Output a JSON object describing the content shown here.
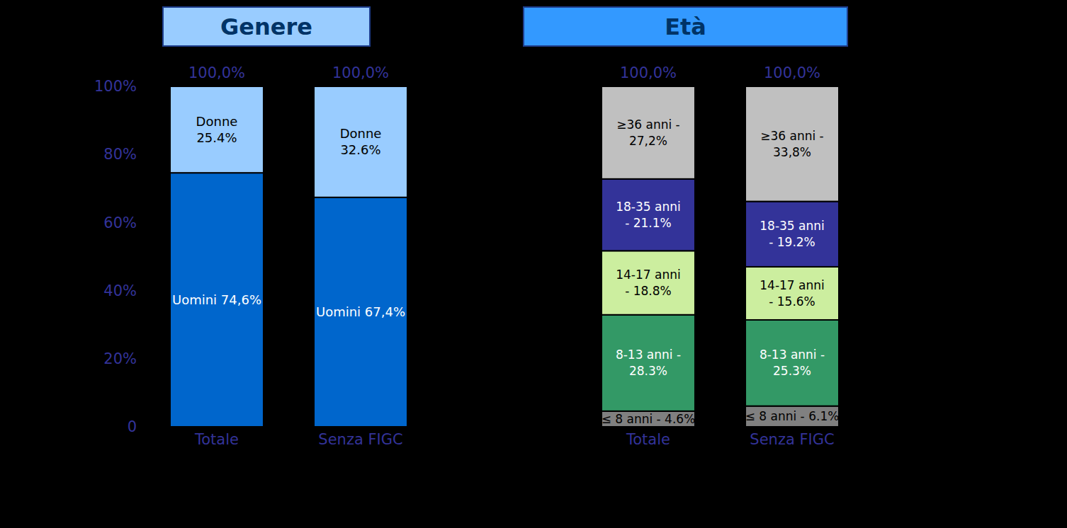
{
  "chart_data": [
    {
      "type": "bar",
      "title": "Genere",
      "stacked": true,
      "data_labels": true,
      "categories": [
        "Totale",
        "Senza FIGC"
      ],
      "series": [
        {
          "name": "Uomini",
          "color": "#0066cc",
          "values": [
            74.6,
            67.4
          ],
          "value_labels": [
            "Uomini 74,6%",
            "Uomini 67,4%"
          ]
        },
        {
          "name": "Donne",
          "color": "#99ccff",
          "values": [
            25.4,
            32.6
          ],
          "value_labels": [
            "Donne\n25.4%",
            "Donne\n32.6%"
          ]
        }
      ],
      "total_labels": [
        "100,0%",
        "100,0%"
      ],
      "ylim": [
        0,
        100
      ],
      "yticks": [
        0,
        {
          "value": 20,
          "label": "20%"
        },
        {
          "value": 40,
          "label": "40%"
        },
        {
          "value": 60,
          "label": "60%"
        },
        {
          "value": 80,
          "label": "80%"
        },
        {
          "value": 100,
          "label": "100%"
        }
      ]
    },
    {
      "type": "bar",
      "title": "Età",
      "stacked": true,
      "data_labels": true,
      "tick_labels": "x",
      "categories": [
        "Totale",
        "Senza FIGC"
      ],
      "series": [
        {
          "name": "≤ 8 anni",
          "color": "#808080",
          "values": [
            4.6,
            6.1
          ],
          "value_labels": [
            "≤ 8 anni - 4.6%",
            "≤ 8 anni - 6.1%"
          ]
        },
        {
          "name": "8-13 anni",
          "color": "#339966",
          "values": [
            28.3,
            25.3
          ],
          "value_labels": [
            "8-13 anni -\n28.3%",
            "8-13 anni -\n25.3%"
          ]
        },
        {
          "name": "14-17 anni",
          "color": "#ccee9f",
          "values": [
            18.8,
            15.6
          ],
          "value_labels": [
            "14-17 anni\n- 18.8%",
            "14-17 anni\n- 15.6%"
          ]
        },
        {
          "name": "18-35 anni",
          "color": "#333399",
          "values": [
            21.1,
            19.2
          ],
          "value_labels": [
            "18-35 anni\n-  21.1%",
            "18-35 anni\n-  19.2%"
          ]
        },
        {
          "name": "≥36 anni",
          "color": "#c0c0c0",
          "values": [
            27.2,
            33.8
          ],
          "value_labels": [
            "≥36 anni -\n27,2%",
            "≥36 anni -\n33,8%"
          ]
        }
      ],
      "total_labels": [
        "100,0%",
        "100,0%"
      ],
      "ylim": [
        0,
        100
      ]
    }
  ]
}
